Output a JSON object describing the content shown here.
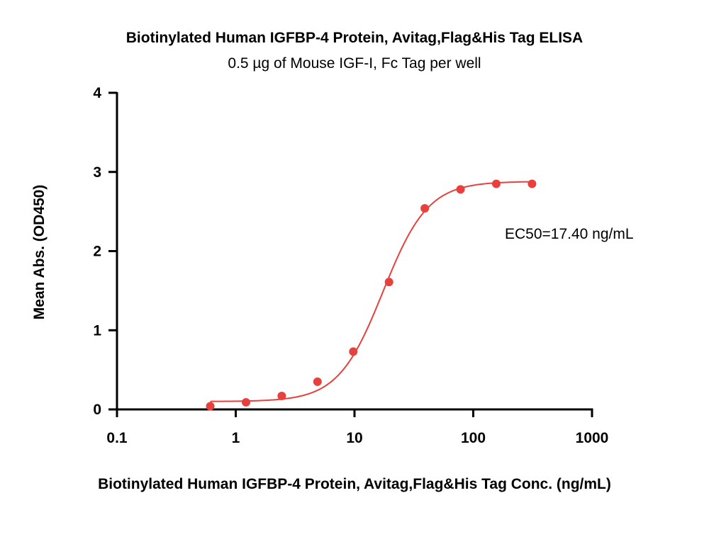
{
  "chart_data": {
    "type": "scatter",
    "title": "Biotinylated Human IGFBP-4 Protein, Avitag,Flag&His Tag ELISA",
    "subtitle": "0.5 µg of Mouse IGF-I, Fc Tag per well",
    "xlabel": "Biotinylated Human IGFBP-4 Protein, Avitag,Flag&His Tag Conc. (ng/mL)",
    "ylabel": "Mean Abs. (OD450)",
    "x_scale": "log",
    "xlim": [
      0.1,
      1000
    ],
    "ylim": [
      0,
      4
    ],
    "x_ticks": [
      0.1,
      1,
      10,
      100,
      1000
    ],
    "x_tick_labels": [
      "0.1",
      "1",
      "10",
      "100",
      "1000"
    ],
    "y_ticks": [
      0,
      1,
      2,
      3,
      4
    ],
    "y_tick_labels": [
      "0",
      "1",
      "2",
      "3",
      "4"
    ],
    "grid": false,
    "series": [
      {
        "color": "#e8413d",
        "x": [
          0.61,
          1.22,
          2.44,
          4.88,
          9.77,
          19.53,
          39.06,
          78.13,
          156.25,
          312.5
        ],
        "y": [
          0.04,
          0.09,
          0.17,
          0.35,
          0.73,
          1.61,
          2.54,
          2.78,
          2.85,
          2.85
        ]
      }
    ],
    "fit": {
      "type": "4PL",
      "bottom": 0.1,
      "top": 2.88,
      "ec50": 17.4,
      "hill": 2.3,
      "color": "#e8413d"
    },
    "annotation": "EC50=17.40 ng/mL"
  }
}
